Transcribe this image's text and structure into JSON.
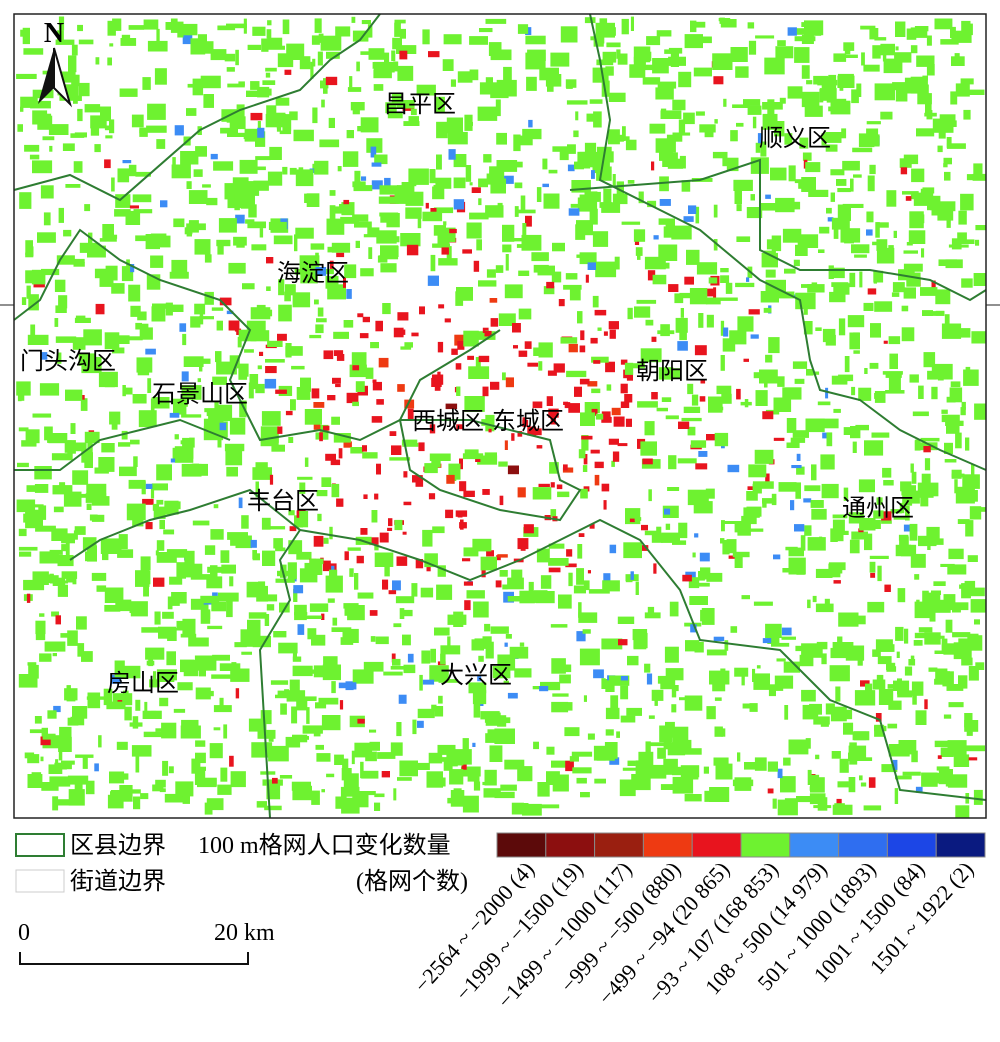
{
  "north": "N",
  "districts": [
    "昌平区",
    "顺义区",
    "海淀区",
    "门头沟区",
    "石景山区",
    "朝阳区",
    "西城区",
    "东城区",
    "丰台区",
    "通州区",
    "大兴区",
    "房山区"
  ],
  "legend": {
    "county_boundary": "区县边界",
    "street_boundary": "街道边界",
    "title": "100 m格网人口变化数量",
    "subtitle": "(格网个数)",
    "classes": [
      {
        "label": "−2564 ~ −2000 (4)",
        "color": "#5c0a0a"
      },
      {
        "label": "−1999 ~ −1500 (19)",
        "color": "#8c0f0f"
      },
      {
        "label": "−1499 ~ −1000 (117)",
        "color": "#9a1f10"
      },
      {
        "label": "−999 ~ −500 (880)",
        "color": "#ee3a12"
      },
      {
        "label": "−499 ~ −94 (20 865)",
        "color": "#e8141e"
      },
      {
        "label": "−93 ~ 107 (168 853)",
        "color": "#6ef230"
      },
      {
        "label": "108 ~ 500 (14 979)",
        "color": "#3c8cf5"
      },
      {
        "label": "501 ~ 1000 (1893)",
        "color": "#2f6ef0"
      },
      {
        "label": "1001 ~ 1500 (84)",
        "color": "#1c46e6"
      },
      {
        "label": "1501 ~ 1922 (2)",
        "color": "#0a1a80"
      }
    ]
  },
  "scale": {
    "start": "0",
    "end": "20 km"
  }
}
